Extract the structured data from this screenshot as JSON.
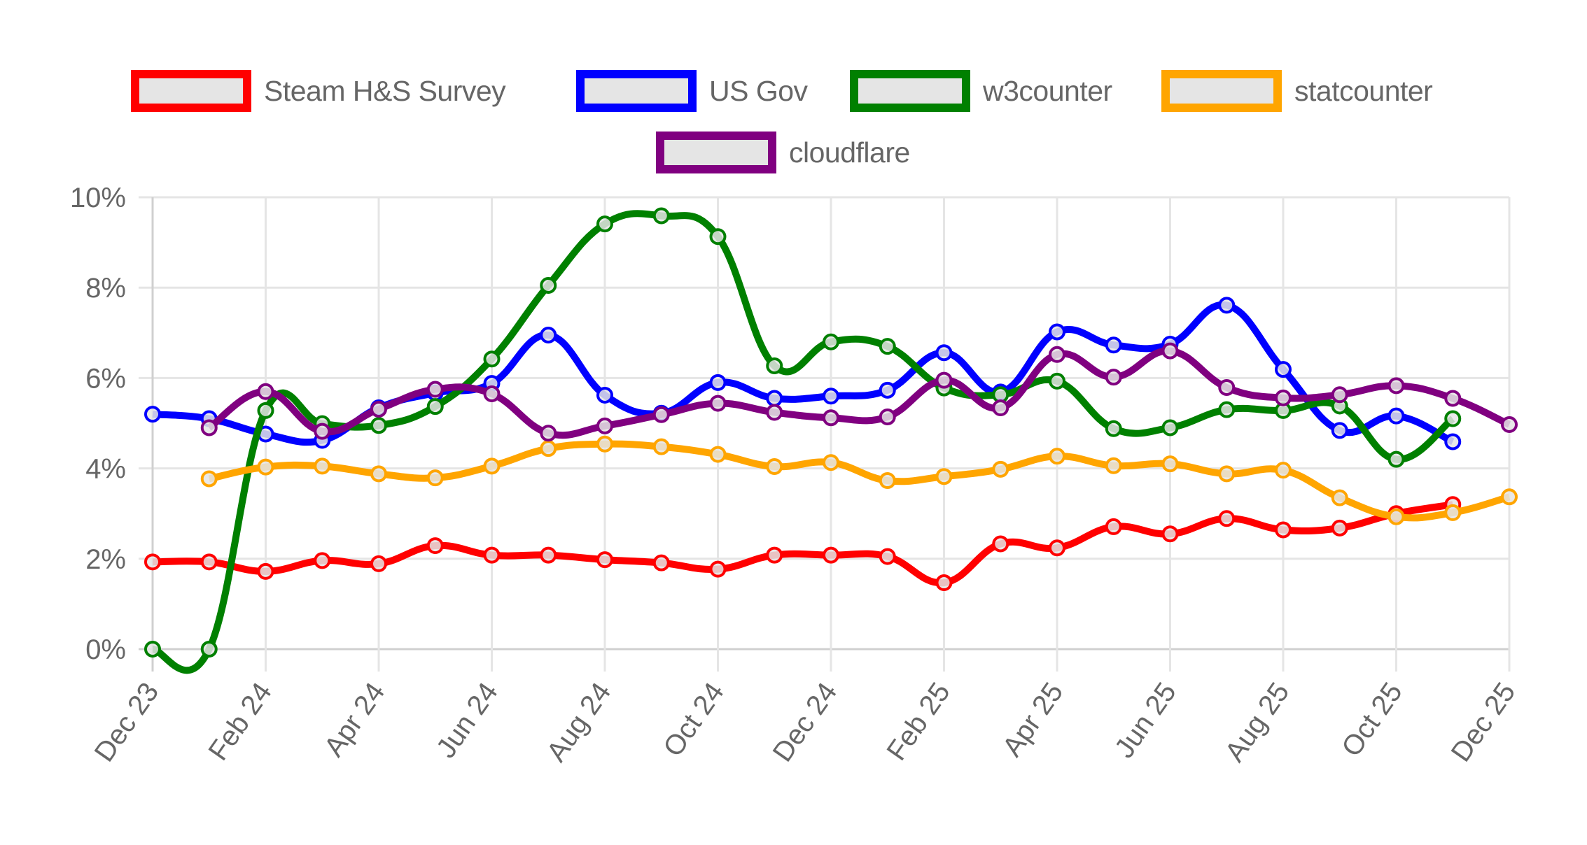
{
  "chart_data": {
    "type": "line",
    "title": "",
    "xlabel": "",
    "ylabel": "",
    "ylim": [
      0,
      10
    ],
    "y_ticks": [
      "0%",
      "2%",
      "4%",
      "6%",
      "8%",
      "10%"
    ],
    "y_tick_values": [
      0,
      2,
      4,
      6,
      8,
      10
    ],
    "x_tick_labels": [
      "Dec 23",
      "Feb 24",
      "Apr 24",
      "Jun 24",
      "Aug 24",
      "Oct 24",
      "Dec 24",
      "Feb 25",
      "Apr 25",
      "Jun 25",
      "Aug 25",
      "Oct 25",
      "Dec 25"
    ],
    "x": [
      "Dec 23",
      "Jan 24",
      "Feb 24",
      "Mar 24",
      "Apr 24",
      "May 24",
      "Jun 24",
      "Jul 24",
      "Aug 24",
      "Sep 24",
      "Oct 24",
      "Nov 24",
      "Dec 24",
      "Jan 25",
      "Feb 25",
      "Mar 25",
      "Apr 25",
      "May 25",
      "Jun 25",
      "Jul 25",
      "Aug 25",
      "Sep 25",
      "Oct 25",
      "Nov 25",
      "Dec 25"
    ],
    "grid": true,
    "legend_position": "top",
    "series": [
      {
        "name": "Steam H&S Survey",
        "color": "#ff0000",
        "values": [
          1.93,
          1.93,
          1.72,
          1.96,
          1.89,
          2.29,
          2.08,
          2.08,
          1.98,
          1.91,
          1.77,
          2.08,
          2.08,
          2.05,
          1.47,
          2.33,
          2.24,
          2.71,
          2.55,
          2.89,
          2.64,
          2.68,
          3.0,
          3.2,
          null
        ]
      },
      {
        "name": "US Gov",
        "color": "#0000ff",
        "values": [
          5.2,
          5.1,
          4.76,
          4.62,
          5.34,
          5.67,
          5.88,
          6.95,
          5.62,
          5.22,
          5.9,
          5.55,
          5.6,
          5.73,
          6.56,
          5.69,
          7.02,
          6.73,
          6.75,
          7.61,
          6.19,
          4.84,
          5.16,
          4.59,
          null
        ]
      },
      {
        "name": "w3counter",
        "color": "#008000",
        "values": [
          0.0,
          0.0,
          5.28,
          4.99,
          4.95,
          5.37,
          6.42,
          8.05,
          9.41,
          9.59,
          9.13,
          6.27,
          6.8,
          6.7,
          5.78,
          5.63,
          5.93,
          4.88,
          4.9,
          5.3,
          5.28,
          5.38,
          4.2,
          5.1,
          null
        ]
      },
      {
        "name": "statcounter",
        "color": "#ffa500",
        "values": [
          null,
          3.77,
          4.03,
          4.05,
          3.88,
          3.79,
          4.05,
          4.44,
          4.54,
          4.48,
          4.31,
          4.04,
          4.13,
          3.73,
          3.82,
          3.98,
          4.27,
          4.06,
          4.1,
          3.88,
          3.96,
          3.35,
          2.93,
          3.02,
          3.37
        ]
      },
      {
        "name": "cloudflare",
        "color": "#800080",
        "values": [
          null,
          4.9,
          5.7,
          4.82,
          5.31,
          5.75,
          5.65,
          4.78,
          4.94,
          5.19,
          5.44,
          5.24,
          5.12,
          5.14,
          5.95,
          5.34,
          6.52,
          6.02,
          6.6,
          5.79,
          5.56,
          5.63,
          5.83,
          5.55,
          4.97
        ]
      }
    ]
  },
  "legend": {
    "items": [
      {
        "label": "Steam H&S Survey",
        "color": "#ff0000"
      },
      {
        "label": "US Gov",
        "color": "#0000ff"
      },
      {
        "label": "w3counter",
        "color": "#008000"
      },
      {
        "label": "statcounter",
        "color": "#ffa500"
      },
      {
        "label": "cloudflare",
        "color": "#800080"
      }
    ]
  },
  "style": {
    "grid_color": "#e5e5e5",
    "tick_label_color": "#666666",
    "point_fill": "#e5e5e5"
  }
}
